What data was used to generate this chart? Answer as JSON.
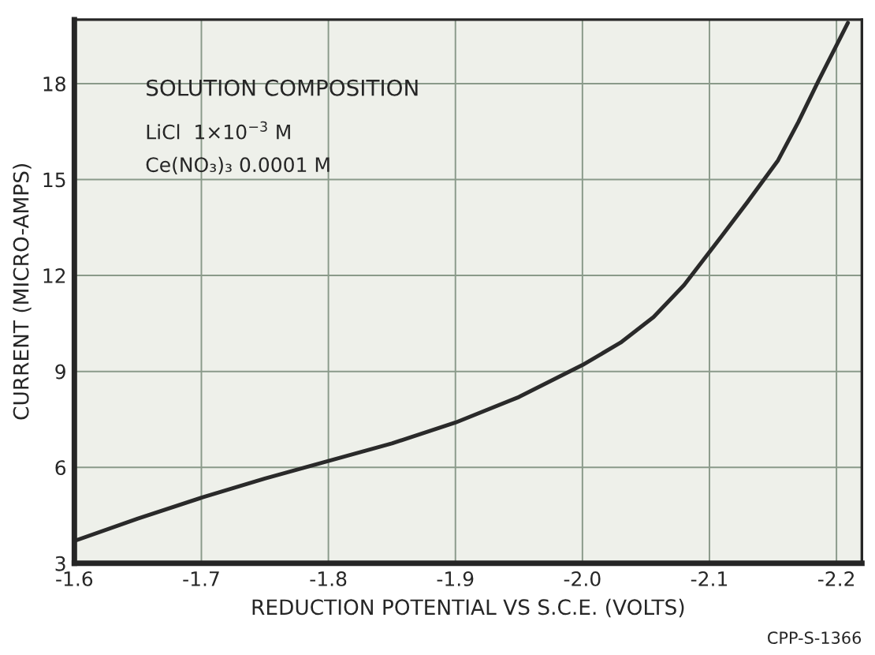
{
  "chart_data": {
    "type": "line",
    "xlabel": "REDUCTION POTENTIAL VS S.C.E. (VOLTS)",
    "ylabel": "CURRENT (MICRO-AMPS)",
    "annotations": [
      "SOLUTION COMPOSITION",
      "LiCl  1×10$^{−3}$ M",
      "Ce(NO₃)₃ 0.0001 M",
      "CPP-S-1366"
    ],
    "x": [
      -1.6,
      -1.65,
      -1.7,
      -1.75,
      -1.8,
      -1.85,
      -1.9,
      -1.95,
      -2.0,
      -2.03,
      -2.056,
      -2.08,
      -2.109,
      -2.13,
      -2.154,
      -2.17,
      -2.186,
      -2.209
    ],
    "series": [
      {
        "color": "#2a2a2a",
        "values": [
          3.7,
          4.4,
          5.05,
          5.65,
          6.2,
          6.75,
          7.4,
          8.2,
          9.2,
          9.9,
          10.7,
          11.7,
          13.2,
          14.3,
          15.6,
          16.8,
          18.1,
          19.9
        ]
      }
    ],
    "xlim": [
      -1.6,
      -2.22
    ],
    "xticks": [
      -1.6,
      -1.7,
      -1.8,
      -1.9,
      {
        "value": -2.0,
        "label": "-2.0"
      },
      -2.1,
      -2.2
    ],
    "ylim": [
      3,
      20
    ],
    "yticks": [
      3,
      6,
      9,
      12,
      15,
      18
    ],
    "grid": true,
    "marker": "none",
    "line_style": "solid"
  }
}
